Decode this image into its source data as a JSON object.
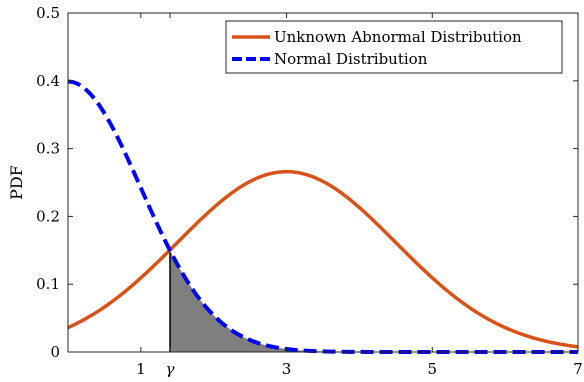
{
  "chart_data": {
    "type": "line",
    "title": "",
    "xlabel": "",
    "ylabel": "PDF",
    "xlim": [
      0,
      7
    ],
    "ylim": [
      0,
      0.5
    ],
    "grid": false,
    "legend_position": "top-right",
    "x_ticks": [
      {
        "value": 1,
        "label": "1"
      },
      {
        "value": 1.4,
        "label": "γ"
      },
      {
        "value": 3,
        "label": "3"
      },
      {
        "value": 5,
        "label": "5"
      },
      {
        "value": 7,
        "label": "7"
      }
    ],
    "y_ticks": [
      {
        "value": 0,
        "label": "0"
      },
      {
        "value": 0.1,
        "label": "0.1"
      },
      {
        "value": 0.2,
        "label": "0.2"
      },
      {
        "value": 0.3,
        "label": "0.3"
      },
      {
        "value": 0.4,
        "label": "0.4"
      },
      {
        "value": 0.5,
        "label": "0.5"
      }
    ],
    "threshold": {
      "label": "γ",
      "value": 1.4
    },
    "series": [
      {
        "name": "Unknown Abnormal Distribution",
        "style": "solid",
        "color": "#d95319",
        "distribution": {
          "family": "normal",
          "mean": 3,
          "std": 1.5
        },
        "x": [
          0,
          0.5,
          1,
          1.4,
          1.5,
          2,
          2.5,
          3,
          3.5,
          4,
          4.5,
          5,
          5.5,
          6,
          6.5,
          7
        ],
        "y": [
          0.036,
          0.066,
          0.109,
          0.151,
          0.161,
          0.213,
          0.252,
          0.266,
          0.252,
          0.213,
          0.161,
          0.109,
          0.066,
          0.036,
          0.017,
          0.008
        ]
      },
      {
        "name": "Normal Distribution",
        "style": "dashed",
        "color": "#0000ff",
        "distribution": {
          "family": "normal",
          "mean": 0,
          "std": 1
        },
        "x": [
          0,
          0.5,
          1,
          1.4,
          1.5,
          2,
          2.5,
          3,
          3.5,
          4,
          5,
          6,
          7
        ],
        "y": [
          0.399,
          0.352,
          0.242,
          0.15,
          0.13,
          0.054,
          0.018,
          0.004,
          0.001,
          0.0001,
          0.0,
          0.0,
          0.0
        ]
      }
    ],
    "shaded_region": {
      "under_series": "Normal Distribution",
      "from_x": 1.4,
      "to_x": 7,
      "fill": "#7f7f7f"
    }
  }
}
